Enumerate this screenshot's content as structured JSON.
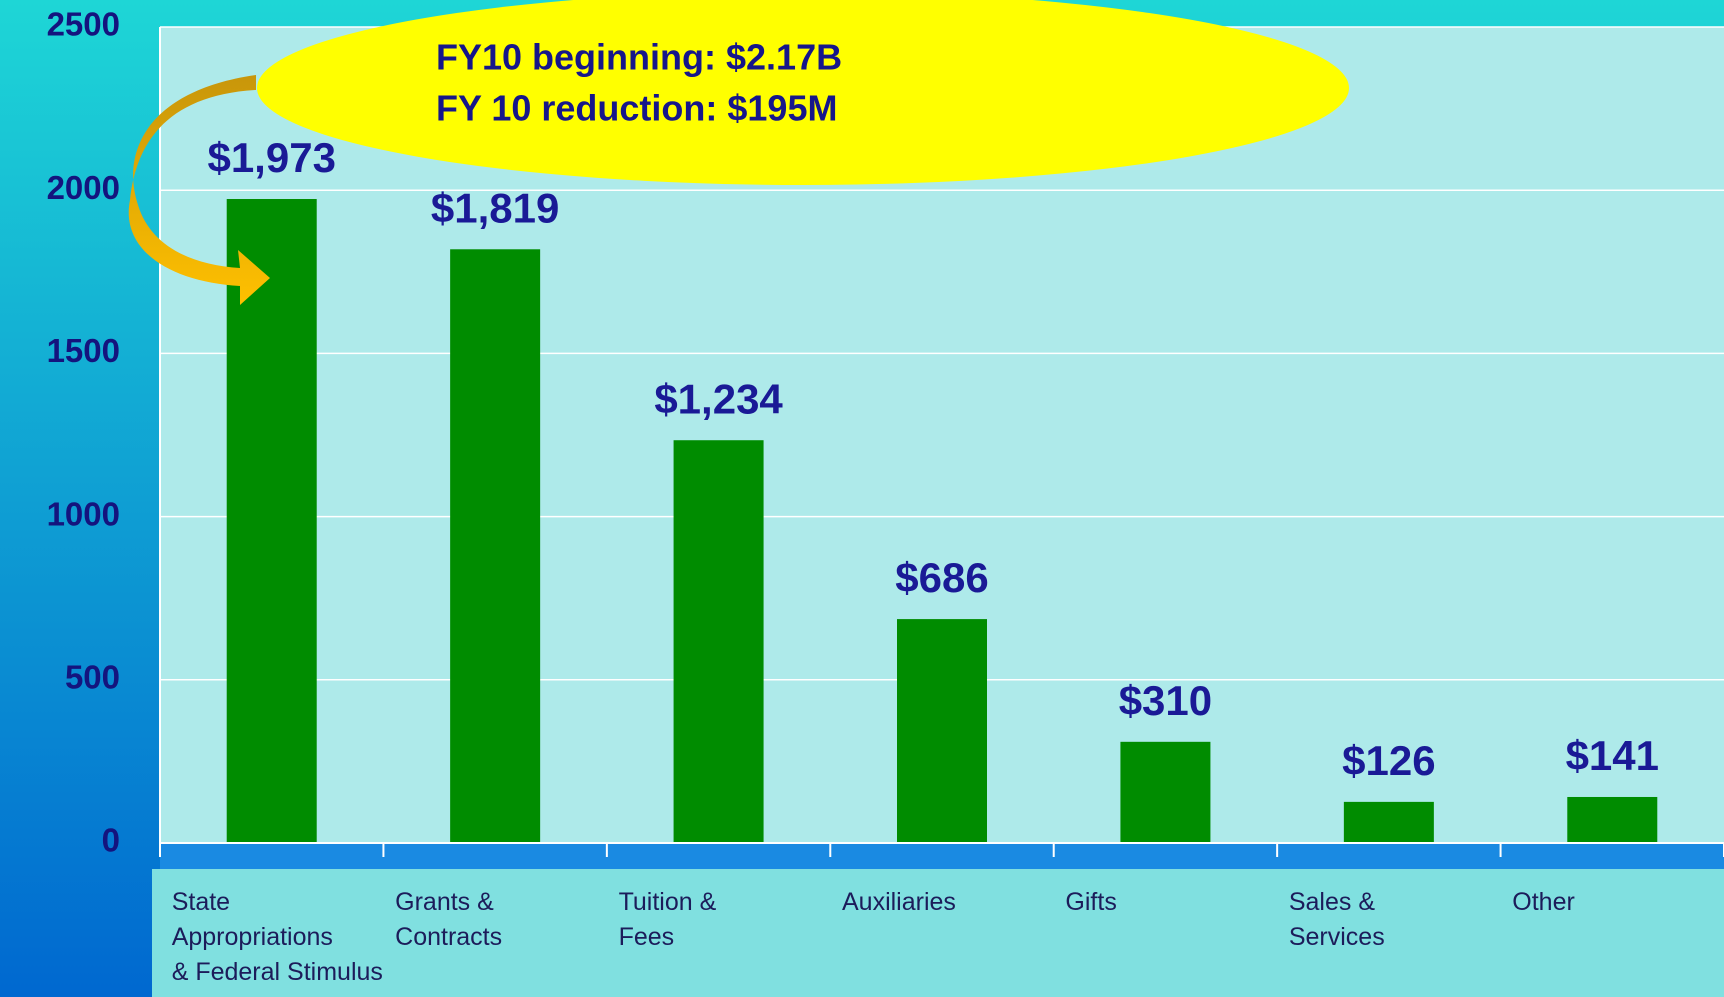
{
  "chart_data": {
    "type": "bar",
    "categories": [
      "State\nAppropriations\n& Federal Stimulus",
      "Grants &\nContracts",
      "Tuition &\nFees",
      "Auxiliaries",
      "Gifts",
      "Sales &\nServices",
      "Other"
    ],
    "values": [
      1973,
      1819,
      1234,
      686,
      310,
      126,
      141
    ],
    "value_labels": [
      "$1,973",
      "$1,819",
      "$1,234",
      "$686",
      "$310",
      "$126",
      "$141"
    ],
    "color": "#008c00",
    "ylim": [
      0,
      2500
    ],
    "yticks": [
      0,
      500,
      1000,
      1500,
      2000,
      2500
    ],
    "grid": true,
    "annotations": [
      "FY10 beginning: $2.17B",
      "FY 10 reduction: $195M"
    ]
  }
}
